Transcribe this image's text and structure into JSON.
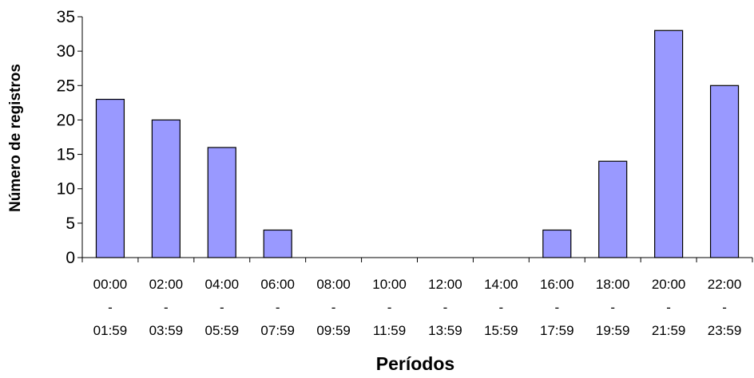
{
  "chart_data": {
    "type": "bar",
    "categories": [
      [
        "00:00",
        "-",
        "01:59"
      ],
      [
        "02:00",
        "-",
        "03:59"
      ],
      [
        "04:00",
        "-",
        "05:59"
      ],
      [
        "06:00",
        "-",
        "07:59"
      ],
      [
        "08:00",
        "-",
        "09:59"
      ],
      [
        "10:00",
        "-",
        "11:59"
      ],
      [
        "12:00",
        "-",
        "13:59"
      ],
      [
        "14:00",
        "-",
        "15:59"
      ],
      [
        "16:00",
        "-",
        "17:59"
      ],
      [
        "18:00",
        "-",
        "19:59"
      ],
      [
        "20:00",
        "-",
        "21:59"
      ],
      [
        "22:00",
        "-",
        "23:59"
      ]
    ],
    "values": [
      23,
      20,
      16,
      4,
      0,
      0,
      0,
      0,
      4,
      14,
      33,
      25
    ],
    "xlabel": "Períodos",
    "ylabel": "Número de registros",
    "ylim": [
      0,
      35
    ],
    "yticks": [
      "0",
      "5",
      "10",
      "15",
      "20",
      "25",
      "30",
      "35"
    ],
    "grid": false,
    "bar_color": "#9999ff",
    "bar_edge_color": "#000000"
  }
}
